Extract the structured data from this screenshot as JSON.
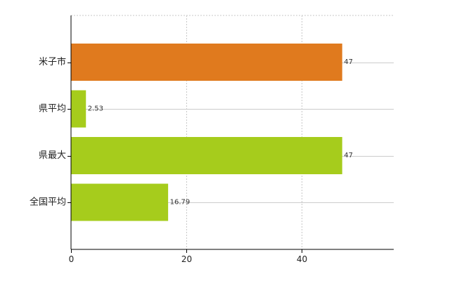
{
  "chart_data": {
    "type": "bar",
    "orientation": "horizontal",
    "title": "",
    "xlabel": "",
    "ylabel": "",
    "categories": [
      "米子市",
      "県平均",
      "県最大",
      "全国平均"
    ],
    "values": [
      47,
      2.53,
      47,
      16.79
    ],
    "value_labels": [
      "47",
      "2.53",
      "47",
      "16.79"
    ],
    "bar_colors": [
      "#e07a1e",
      "#a6cc1c",
      "#a6cc1c",
      "#a6cc1c"
    ],
    "xlim": [
      0,
      56
    ],
    "xticks": [
      0,
      20,
      40
    ],
    "xtick_labels": [
      "0",
      "20",
      "40"
    ],
    "grid": true,
    "legend": "none"
  }
}
